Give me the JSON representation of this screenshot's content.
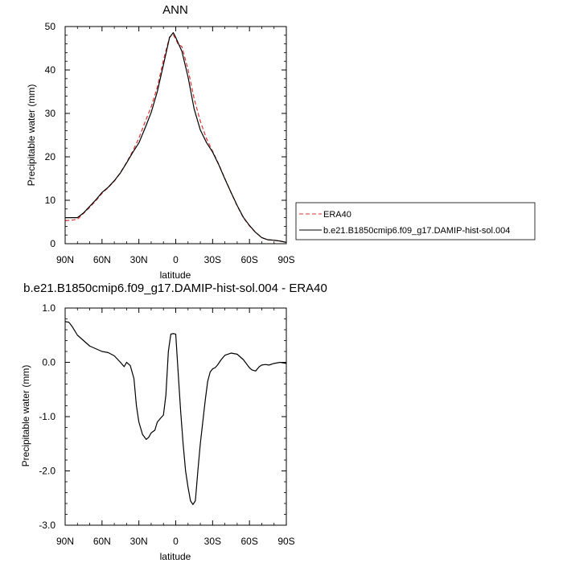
{
  "chart_data": [
    {
      "type": "line",
      "title": "ANN",
      "xlabel": "latitude",
      "ylabel": "Precipitable water (mm)",
      "xlim": [
        90,
        -90
      ],
      "ylim": [
        0,
        50
      ],
      "x_ticks": [
        90,
        60,
        30,
        0,
        -30,
        -60,
        -90
      ],
      "x_tick_labels": [
        "90N",
        "60N",
        "30N",
        "0",
        "30S",
        "60S",
        "90S"
      ],
      "y_ticks": [
        0,
        10,
        20,
        30,
        40,
        50
      ],
      "y_tick_labels": [
        "0",
        "10",
        "20",
        "30",
        "40",
        "50"
      ],
      "grid": false,
      "legend_position": "right",
      "series": [
        {
          "name": "ERA40",
          "color": "#e03030",
          "dash": "dashed",
          "x": [
            90,
            85,
            80,
            75,
            70,
            65,
            60,
            55,
            50,
            45,
            40,
            35,
            30,
            25,
            20,
            15,
            10,
            5,
            2,
            0,
            -2,
            -5,
            -10,
            -15,
            -20,
            -25,
            -30,
            -35,
            -40,
            -45,
            -50,
            -55,
            -60,
            -65,
            -70,
            -75,
            -80,
            -85,
            -90
          ],
          "y": [
            5.3,
            5.4,
            5.6,
            7.0,
            8.4,
            9.9,
            11.6,
            12.9,
            14.4,
            16.4,
            18.7,
            21.3,
            24.3,
            28.0,
            31.5,
            36.0,
            42.3,
            47.6,
            48.1,
            47.1,
            45.9,
            45.4,
            40.1,
            33.4,
            28.2,
            24.2,
            21.3,
            18.3,
            15.0,
            11.8,
            8.7,
            6.0,
            4.1,
            2.6,
            1.4,
            0.9,
            0.8,
            0.6,
            0.3
          ]
        },
        {
          "name": "b.e21.B1850cmip6.f09_g17.DAMIP-hist-sol.004",
          "color": "#000000",
          "dash": "solid",
          "x": [
            90,
            85,
            80,
            75,
            70,
            65,
            60,
            55,
            50,
            45,
            40,
            35,
            30,
            25,
            20,
            15,
            10,
            5,
            2,
            0,
            -2,
            -5,
            -10,
            -15,
            -20,
            -25,
            -30,
            -35,
            -40,
            -45,
            -50,
            -55,
            -60,
            -65,
            -70,
            -75,
            -80,
            -85,
            -90
          ],
          "y": [
            6.0,
            6.0,
            6.0,
            7.1,
            8.6,
            10.1,
            11.8,
            13.0,
            14.5,
            16.3,
            18.6,
            21.0,
            23.2,
            26.6,
            30.2,
            35.0,
            41.2,
            47.5,
            48.6,
            47.5,
            46.2,
            44.3,
            38.4,
            31.0,
            26.2,
            23.3,
            21.1,
            18.2,
            14.9,
            11.8,
            8.8,
            6.1,
            4.2,
            2.6,
            1.4,
            0.9,
            0.8,
            0.6,
            0.3
          ]
        }
      ]
    },
    {
      "type": "line",
      "title": "b.e21.B1850cmip6.f09_g17.DAMIP-hist-sol.004 - ERA40",
      "xlabel": "latitude",
      "ylabel": "Precipitable water (mm)",
      "xlim": [
        90,
        -90
      ],
      "ylim": [
        -3,
        1
      ],
      "x_ticks": [
        90,
        60,
        30,
        0,
        -30,
        -60,
        -90
      ],
      "x_tick_labels": [
        "90N",
        "60N",
        "30N",
        "0",
        "30S",
        "60S",
        "90S"
      ],
      "y_ticks": [
        1,
        0,
        -1,
        -2,
        -3
      ],
      "y_tick_labels": [
        "1.0",
        "0.0",
        "-1.0",
        "-2.0",
        "-3.0"
      ],
      "grid": false,
      "series": [
        {
          "color": "#000000",
          "dash": "solid",
          "x": [
            90,
            87,
            84,
            80,
            75,
            70,
            65,
            60,
            55,
            50,
            45,
            42,
            40,
            37,
            34,
            32,
            30,
            27,
            24,
            22,
            20,
            17,
            15,
            12,
            10,
            8,
            6,
            4,
            2,
            0,
            -2,
            -4,
            -6,
            -8,
            -10,
            -12,
            -14,
            -16,
            -18,
            -20,
            -22,
            -24,
            -26,
            -28,
            -30,
            -32,
            -34,
            -37,
            -40,
            -45,
            -50,
            -55,
            -60,
            -62,
            -65,
            -68,
            -70,
            -73,
            -76,
            -80,
            -85,
            -90
          ],
          "y": [
            0.75,
            0.74,
            0.65,
            0.5,
            0.4,
            0.3,
            0.25,
            0.2,
            0.18,
            0.12,
            0.0,
            -0.08,
            0.0,
            -0.06,
            -0.3,
            -0.8,
            -1.1,
            -1.33,
            -1.42,
            -1.38,
            -1.3,
            -1.25,
            -1.1,
            -1.02,
            -0.97,
            -0.6,
            0.2,
            0.52,
            0.53,
            0.52,
            -0.2,
            -0.9,
            -1.5,
            -2.0,
            -2.3,
            -2.55,
            -2.62,
            -2.55,
            -2.0,
            -1.5,
            -1.1,
            -0.7,
            -0.35,
            -0.18,
            -0.12,
            -0.1,
            -0.05,
            0.05,
            0.13,
            0.17,
            0.15,
            0.05,
            -0.1,
            -0.14,
            -0.16,
            -0.08,
            -0.05,
            -0.04,
            -0.05,
            -0.02,
            0.0,
            -0.02
          ]
        }
      ]
    }
  ]
}
